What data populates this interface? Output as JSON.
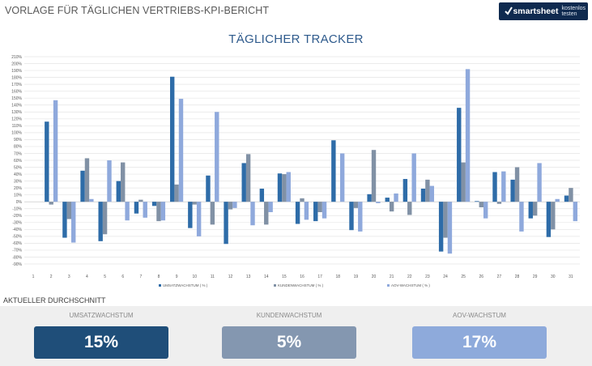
{
  "header": {
    "title": "VORLAGE FÜR TÄGLICHEN VERTRIEBS-KPI-BERICHT",
    "logo_brand": "smartsheet",
    "logo_cta": "kostenlos testen"
  },
  "chart_data": {
    "type": "bar",
    "title": "TÄGLICHER TRACKER",
    "categories": [
      "1",
      "2",
      "3",
      "4",
      "5",
      "6",
      "7",
      "8",
      "9",
      "10",
      "11",
      "12",
      "13",
      "14",
      "15",
      "16",
      "17",
      "18",
      "19",
      "20",
      "21",
      "22",
      "23",
      "24",
      "25",
      "26",
      "27",
      "28",
      "29",
      "30",
      "31"
    ],
    "series": [
      {
        "name": "UMSATZWACHSTUM ( % )",
        "color": "#2e6ca8",
        "values": [
          0,
          116,
          -52,
          45,
          -57,
          30,
          -17,
          -6,
          181,
          -38,
          38,
          -61,
          56,
          19,
          41,
          -32,
          -28,
          89,
          -41,
          11,
          6,
          33,
          19,
          -72,
          136,
          1,
          43,
          32,
          -24,
          -51,
          9
        ]
      },
      {
        "name": "KUNDENWACHSTUM ( % )",
        "color": "#8191a5",
        "values": [
          0,
          -4,
          -25,
          63,
          -47,
          57,
          3,
          -28,
          25,
          -4,
          -33,
          -11,
          69,
          -33,
          40,
          5,
          -15,
          0,
          -9,
          75,
          -14,
          -19,
          32,
          -52,
          57,
          -8,
          -3,
          50,
          -20,
          -40,
          20
        ]
      },
      {
        "name": "AOV-WACHSTUM ( % )",
        "color": "#8fa9dc",
        "values": [
          0,
          147,
          -59,
          4,
          60,
          -27,
          -23,
          -27,
          149,
          -50,
          130,
          -9,
          -34,
          -15,
          43,
          -26,
          -24,
          70,
          -43,
          -2,
          12,
          70,
          23,
          -75,
          192,
          -24,
          44,
          -43,
          56,
          4,
          -28
        ]
      }
    ],
    "ylim": [
      -90,
      210
    ],
    "ytick_step": 10,
    "grid": true,
    "legend": "bottom"
  },
  "summary": {
    "section_label": "AKTUELLER DURCHSCHNITT",
    "kpis": [
      {
        "label": "UMSATZWACHSTUM",
        "value": "15%",
        "color": "#1f4e79"
      },
      {
        "label": "KUNDENWACHSTUM",
        "value": "5%",
        "color": "#8497b0"
      },
      {
        "label": "AOV-WACHSTUM",
        "value": "17%",
        "color": "#8eaadb"
      }
    ]
  }
}
